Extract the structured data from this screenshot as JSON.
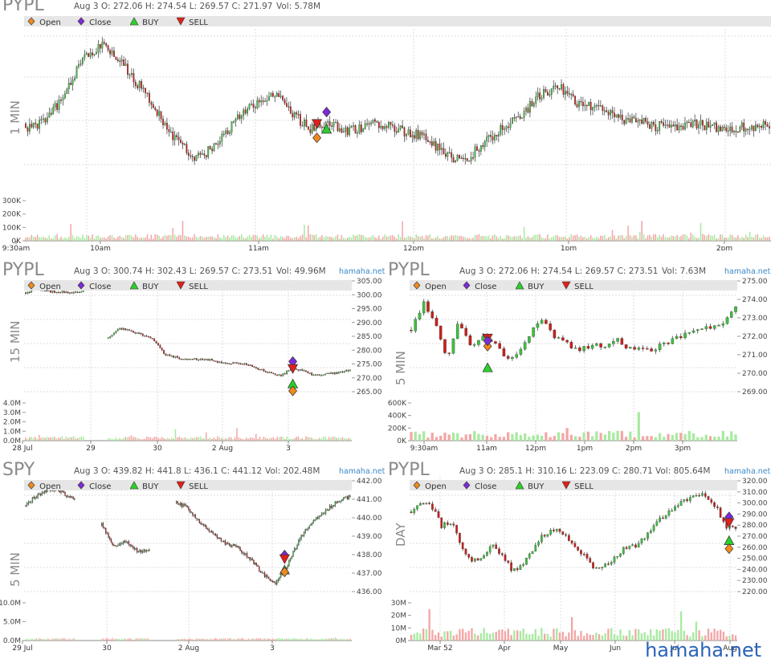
{
  "watermark": "hamaha.net",
  "legend": {
    "open": "Open",
    "close": "Close",
    "buy": "BUY",
    "sell": "SELL",
    "colors": {
      "open": "#f08a1e",
      "close": "#7b2cd6",
      "buy": "#2ad12a",
      "sell": "#e0201c"
    }
  },
  "colors": {
    "up": "#3fbf3f",
    "down": "#c8201c",
    "vol_up": "#a8eaa0",
    "vol_down": "#f3a6a6",
    "grid": "#dddddd"
  },
  "panels": {
    "p1": {
      "ticker": "PYPL",
      "timeframe": "1 MIN",
      "info": "Aug 3 O: 272.06 H: 274.54 L: 269.57 C: 271.97",
      "vol": "Vol: 5.78M",
      "site": ""
    },
    "p2": {
      "ticker": "PYPL",
      "timeframe": "15 MIN",
      "info": "Aug 3 O: 300.74 H: 302.43 L: 269.57 C: 273.51",
      "vol": "Vol: 49.96M",
      "site": "hamaha.net"
    },
    "p3": {
      "ticker": "PYPL",
      "timeframe": "5 MIN",
      "info": "Aug 3 O: 272.06 H: 274.54 L: 269.57 C: 273.51",
      "vol": "Vol: 7.63M",
      "site": "hamaha.net"
    },
    "p4": {
      "ticker": "SPY",
      "timeframe": "5 MIN",
      "info": "Aug 3 O: 439.82 H: 441.8 L: 436.1 C: 441.12",
      "vol": "Vol: 202.48M",
      "site": "hamaha.net"
    },
    "p5": {
      "ticker": "PYPL",
      "timeframe": "DAY",
      "info": "Aug 3 O: 285.1 H: 310.16 L: 223.09 C: 280.71",
      "vol": "Vol: 805.64M",
      "site": "hamaha.net"
    }
  },
  "chart_data": [
    {
      "type": "candlestick",
      "title": "PYPL 1 MIN",
      "xticks": [
        "9:30am",
        "10am",
        "11am",
        "12pm",
        "1pm",
        "2pm"
      ],
      "vol_ticks": [
        "300K",
        "200K",
        "100K",
        "0K"
      ],
      "price_path": [
        270.9,
        271.2,
        272.0,
        273.4,
        273.8,
        273.2,
        272.4,
        271.4,
        270.4,
        269.9,
        270.3,
        271.2,
        271.8,
        272.2,
        271.4,
        270.9,
        271.1,
        270.8,
        271.1,
        271.0,
        270.8,
        270.6,
        270.0,
        269.8,
        270.4,
        271.0,
        271.4,
        272.1,
        272.4,
        271.8,
        271.6,
        271.3,
        271.2,
        271.0,
        271.0,
        271.1,
        271.0,
        270.9,
        271.0,
        271.1
      ],
      "markers": [
        {
          "kind": "close",
          "x": 0.405,
          "y": 271.5
        },
        {
          "kind": "sell",
          "x": 0.392,
          "y": 271.1
        },
        {
          "kind": "buy",
          "x": 0.405,
          "y": 270.9
        },
        {
          "kind": "open",
          "x": 0.392,
          "y": 270.6
        }
      ]
    },
    {
      "type": "candlestick",
      "title": "PYPL 15 MIN",
      "xticks": [
        "28 Jul",
        "29",
        "30",
        "2 Aug",
        "3"
      ],
      "yticks": [
        "305.00",
        "300.00",
        "295.00",
        "290.00",
        "285.00",
        "280.00",
        "275.00",
        "270.00",
        "265.00"
      ],
      "vol_ticks": [
        "4.0M",
        "3.0M",
        "2.0M",
        "1.0M",
        "0.0M"
      ],
      "price_path": [
        300.5,
        302.0,
        301.0,
        300.8,
        300.5,
        301.2,
        null,
        284.0,
        288.0,
        287.0,
        285.5,
        284.0,
        278.5,
        277.5,
        276.5,
        277.0,
        276.5,
        275.5,
        275.5,
        275.0,
        273.5,
        272.0,
        271.0,
        273.5,
        272.5,
        271.0,
        271.5,
        272.0,
        273.0
      ],
      "markers": [
        {
          "kind": "close",
          "x": 0.82,
          "y": 276.0
        },
        {
          "kind": "sell",
          "x": 0.82,
          "y": 273.5
        },
        {
          "kind": "buy",
          "x": 0.82,
          "y": 268.0
        },
        {
          "kind": "open",
          "x": 0.82,
          "y": 265.5
        }
      ]
    },
    {
      "type": "candlestick",
      "title": "PYPL 5 MIN",
      "xticks": [
        "9:30am",
        "11am",
        "12pm",
        "1pm",
        "2pm",
        "3pm"
      ],
      "yticks": [
        "275.00",
        "274.00",
        "273.00",
        "272.00",
        "271.00",
        "270.00",
        "269.00"
      ],
      "vol_ticks": [
        "600K",
        "400K",
        "200K",
        "0K"
      ],
      "price_path": [
        272.2,
        273.8,
        272.6,
        270.6,
        272.8,
        271.2,
        272.0,
        271.5,
        270.6,
        271.0,
        272.3,
        272.8,
        271.9,
        271.5,
        271.2,
        271.5,
        271.4,
        271.8,
        271.3,
        271.4,
        271.2,
        271.6,
        271.8,
        272.1,
        272.2,
        272.5,
        272.6,
        273.6
      ],
      "markers": [
        {
          "kind": "sell",
          "x": 0.238,
          "y": 271.85
        },
        {
          "kind": "open",
          "x": 0.238,
          "y": 271.4
        },
        {
          "kind": "buy",
          "x": 0.238,
          "y": 270.2
        },
        {
          "kind": "close",
          "x": 0.238,
          "y": 271.7
        }
      ]
    },
    {
      "type": "candlestick",
      "title": "SPY 5 MIN",
      "xticks": [
        "29 Jul",
        "30",
        "2 Aug",
        "3"
      ],
      "yticks": [
        "442.00",
        "441.00",
        "440.00",
        "439.00",
        "438.00",
        "437.00",
        "436.00"
      ],
      "vol_ticks": [
        "10.0M",
        "5.0M",
        "0.0M"
      ],
      "price_path": [
        440.7,
        441.2,
        441.5,
        441.3,
        440.9,
        null,
        439.8,
        438.5,
        438.7,
        438.2,
        438.3,
        null,
        440.8,
        440.5,
        439.7,
        439.2,
        438.6,
        438.4,
        437.8,
        437.0,
        436.4,
        437.5,
        438.9,
        439.8,
        440.3,
        440.9,
        441.1
      ],
      "markers": [
        {
          "kind": "close",
          "x": 0.795,
          "y": 438.0
        },
        {
          "kind": "sell",
          "x": 0.795,
          "y": 437.8
        },
        {
          "kind": "buy",
          "x": 0.795,
          "y": 437.2
        },
        {
          "kind": "open",
          "x": 0.795,
          "y": 437.1
        }
      ]
    },
    {
      "type": "candlestick",
      "title": "PYPL DAY",
      "xticks": [
        "Mar 52",
        "Apr",
        "May",
        "Jun",
        "Jul",
        "Aug"
      ],
      "yticks": [
        "320.00",
        "310.00",
        "300.00",
        "290.00",
        "280.00",
        "270.00",
        "260.00",
        "250.00",
        "240.00",
        "230.00",
        "220.00"
      ],
      "vol_ticks": [
        "30M",
        "20M",
        "10M",
        "0M"
      ],
      "price_path": [
        288,
        300,
        296,
        278,
        282,
        260,
        246,
        252,
        262,
        252,
        238,
        245,
        258,
        270,
        275,
        272,
        260,
        252,
        240,
        242,
        250,
        258,
        260,
        268,
        278,
        288,
        295,
        300,
        305,
        306,
        296,
        278,
        276
      ],
      "markers": [
        {
          "kind": "close",
          "x": 0.975,
          "y": 286
        },
        {
          "kind": "sell",
          "x": 0.975,
          "y": 281
        },
        {
          "kind": "buy",
          "x": 0.975,
          "y": 265
        },
        {
          "kind": "open",
          "x": 0.975,
          "y": 258
        }
      ]
    }
  ]
}
